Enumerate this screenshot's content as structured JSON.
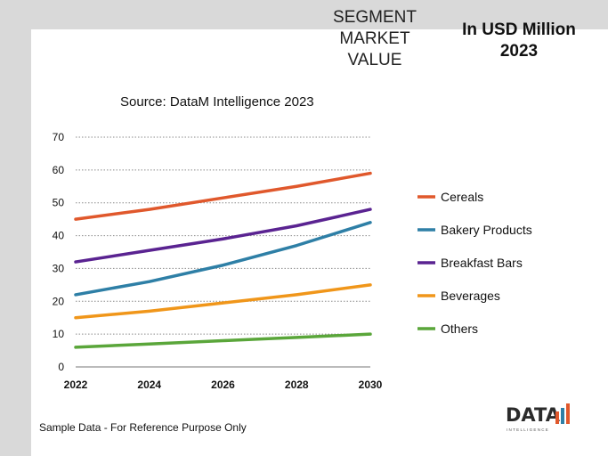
{
  "header": {
    "segment_title": [
      "SEGMENT",
      "MARKET",
      "VALUE"
    ],
    "unit_title": [
      "In USD Million",
      "2023"
    ]
  },
  "source": "Source: DataM Intelligence  2023",
  "footer": "Sample Data - For Reference Purpose Only",
  "logo": {
    "text": "DATA",
    "sub": "INTELLIGENCE"
  },
  "chart_data": {
    "type": "line",
    "title": "Source: DataM Intelligence  2023",
    "xlabel": "",
    "ylabel": "",
    "x": [
      2022,
      2024,
      2026,
      2028,
      2030
    ],
    "x_ticks": [
      "2022",
      "2024",
      "2026",
      "2028",
      "2030"
    ],
    "y_ticks": [
      "0",
      "10",
      "20",
      "30",
      "40",
      "50",
      "60",
      "70"
    ],
    "ylim": [
      0,
      70
    ],
    "xlim": [
      2022,
      2030
    ],
    "grid": "horizontal-dotted",
    "legend": "right",
    "series": [
      {
        "name": "Cereals",
        "color": "#e0582c",
        "values": [
          45,
          48,
          51.5,
          55,
          59
        ]
      },
      {
        "name": "Bakery Products",
        "color": "#2e7fa6",
        "values": [
          22,
          26,
          31,
          37,
          44
        ]
      },
      {
        "name": "Breakfast Bars",
        "color": "#5a2391",
        "values": [
          32,
          35.5,
          39,
          43,
          48
        ]
      },
      {
        "name": "Beverages",
        "color": "#f0961a",
        "values": [
          15,
          17,
          19.5,
          22,
          25
        ]
      },
      {
        "name": "Others",
        "color": "#5aa63a",
        "values": [
          6,
          7,
          8,
          9,
          10
        ]
      }
    ]
  }
}
